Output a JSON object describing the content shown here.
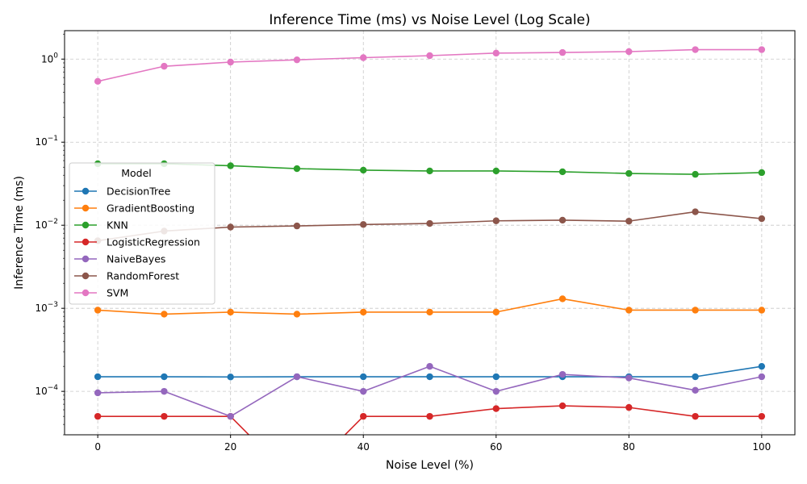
{
  "chart_data": {
    "type": "line",
    "title": "Inference Time (ms) vs Noise Level (Log Scale)",
    "xlabel": "Noise Level (%)",
    "ylabel": "Inference Time (ms)",
    "yscale": "log",
    "xlim": [
      -5,
      105
    ],
    "ylim": [
      3e-05,
      2.2
    ],
    "grid": true,
    "legend_title": "Model",
    "legend_placement": "center-left",
    "x": [
      0,
      10,
      20,
      30,
      40,
      50,
      60,
      70,
      80,
      90,
      100
    ],
    "x_ticks": [
      0,
      20,
      40,
      60,
      80,
      100
    ],
    "x_tick_labels": [
      "0",
      "20",
      "40",
      "60",
      "80",
      "100"
    ],
    "y_ticks": [
      {
        "value": 0.0001,
        "base": "10",
        "exp": "−4"
      },
      {
        "value": 0.001,
        "base": "10",
        "exp": "−3"
      },
      {
        "value": 0.01,
        "base": "10",
        "exp": "−2"
      },
      {
        "value": 0.1,
        "base": "10",
        "exp": "−1"
      },
      {
        "value": 1,
        "base": "10",
        "exp": "0"
      }
    ],
    "series": [
      {
        "name": "DecisionTree",
        "color": "#1f77b4",
        "values": [
          0.00015,
          0.00015,
          0.000149,
          0.00015,
          0.00015,
          0.00015,
          0.00015,
          0.00015,
          0.00015,
          0.00015,
          0.0002
        ]
      },
      {
        "name": "GradientBoosting",
        "color": "#ff7f0e",
        "values": [
          0.00095,
          0.00085,
          0.0009,
          0.00085,
          0.0009,
          0.0009,
          0.0009,
          0.0013,
          0.00095,
          0.00095,
          0.00095
        ]
      },
      {
        "name": "KNN",
        "color": "#2ca02c",
        "values": [
          0.055,
          0.055,
          0.052,
          0.048,
          0.046,
          0.045,
          0.045,
          0.044,
          0.042,
          0.041,
          0.043
        ]
      },
      {
        "name": "LogisticRegression",
        "color": "#d62728",
        "values": [
          5e-05,
          5e-05,
          5e-05,
          0,
          5e-05,
          5e-05,
          6.2e-05,
          6.7e-05,
          6.4e-05,
          5e-05,
          5e-05
        ]
      },
      {
        "name": "NaiveBayes",
        "color": "#9467bd",
        "values": [
          9.6e-05,
          0.0001,
          5e-05,
          0.00015,
          0.0001,
          0.0002,
          0.0001,
          0.00016,
          0.000145,
          0.000103,
          0.00015
        ]
      },
      {
        "name": "RandomForest",
        "color": "#8c564b",
        "values": [
          0.0065,
          0.0085,
          0.0095,
          0.0098,
          0.0102,
          0.0105,
          0.0113,
          0.0115,
          0.0112,
          0.0145,
          0.012
        ]
      },
      {
        "name": "SVM",
        "color": "#e377c2",
        "values": [
          0.54,
          0.82,
          0.92,
          0.98,
          1.04,
          1.1,
          1.18,
          1.2,
          1.23,
          1.3,
          1.3
        ]
      }
    ]
  }
}
